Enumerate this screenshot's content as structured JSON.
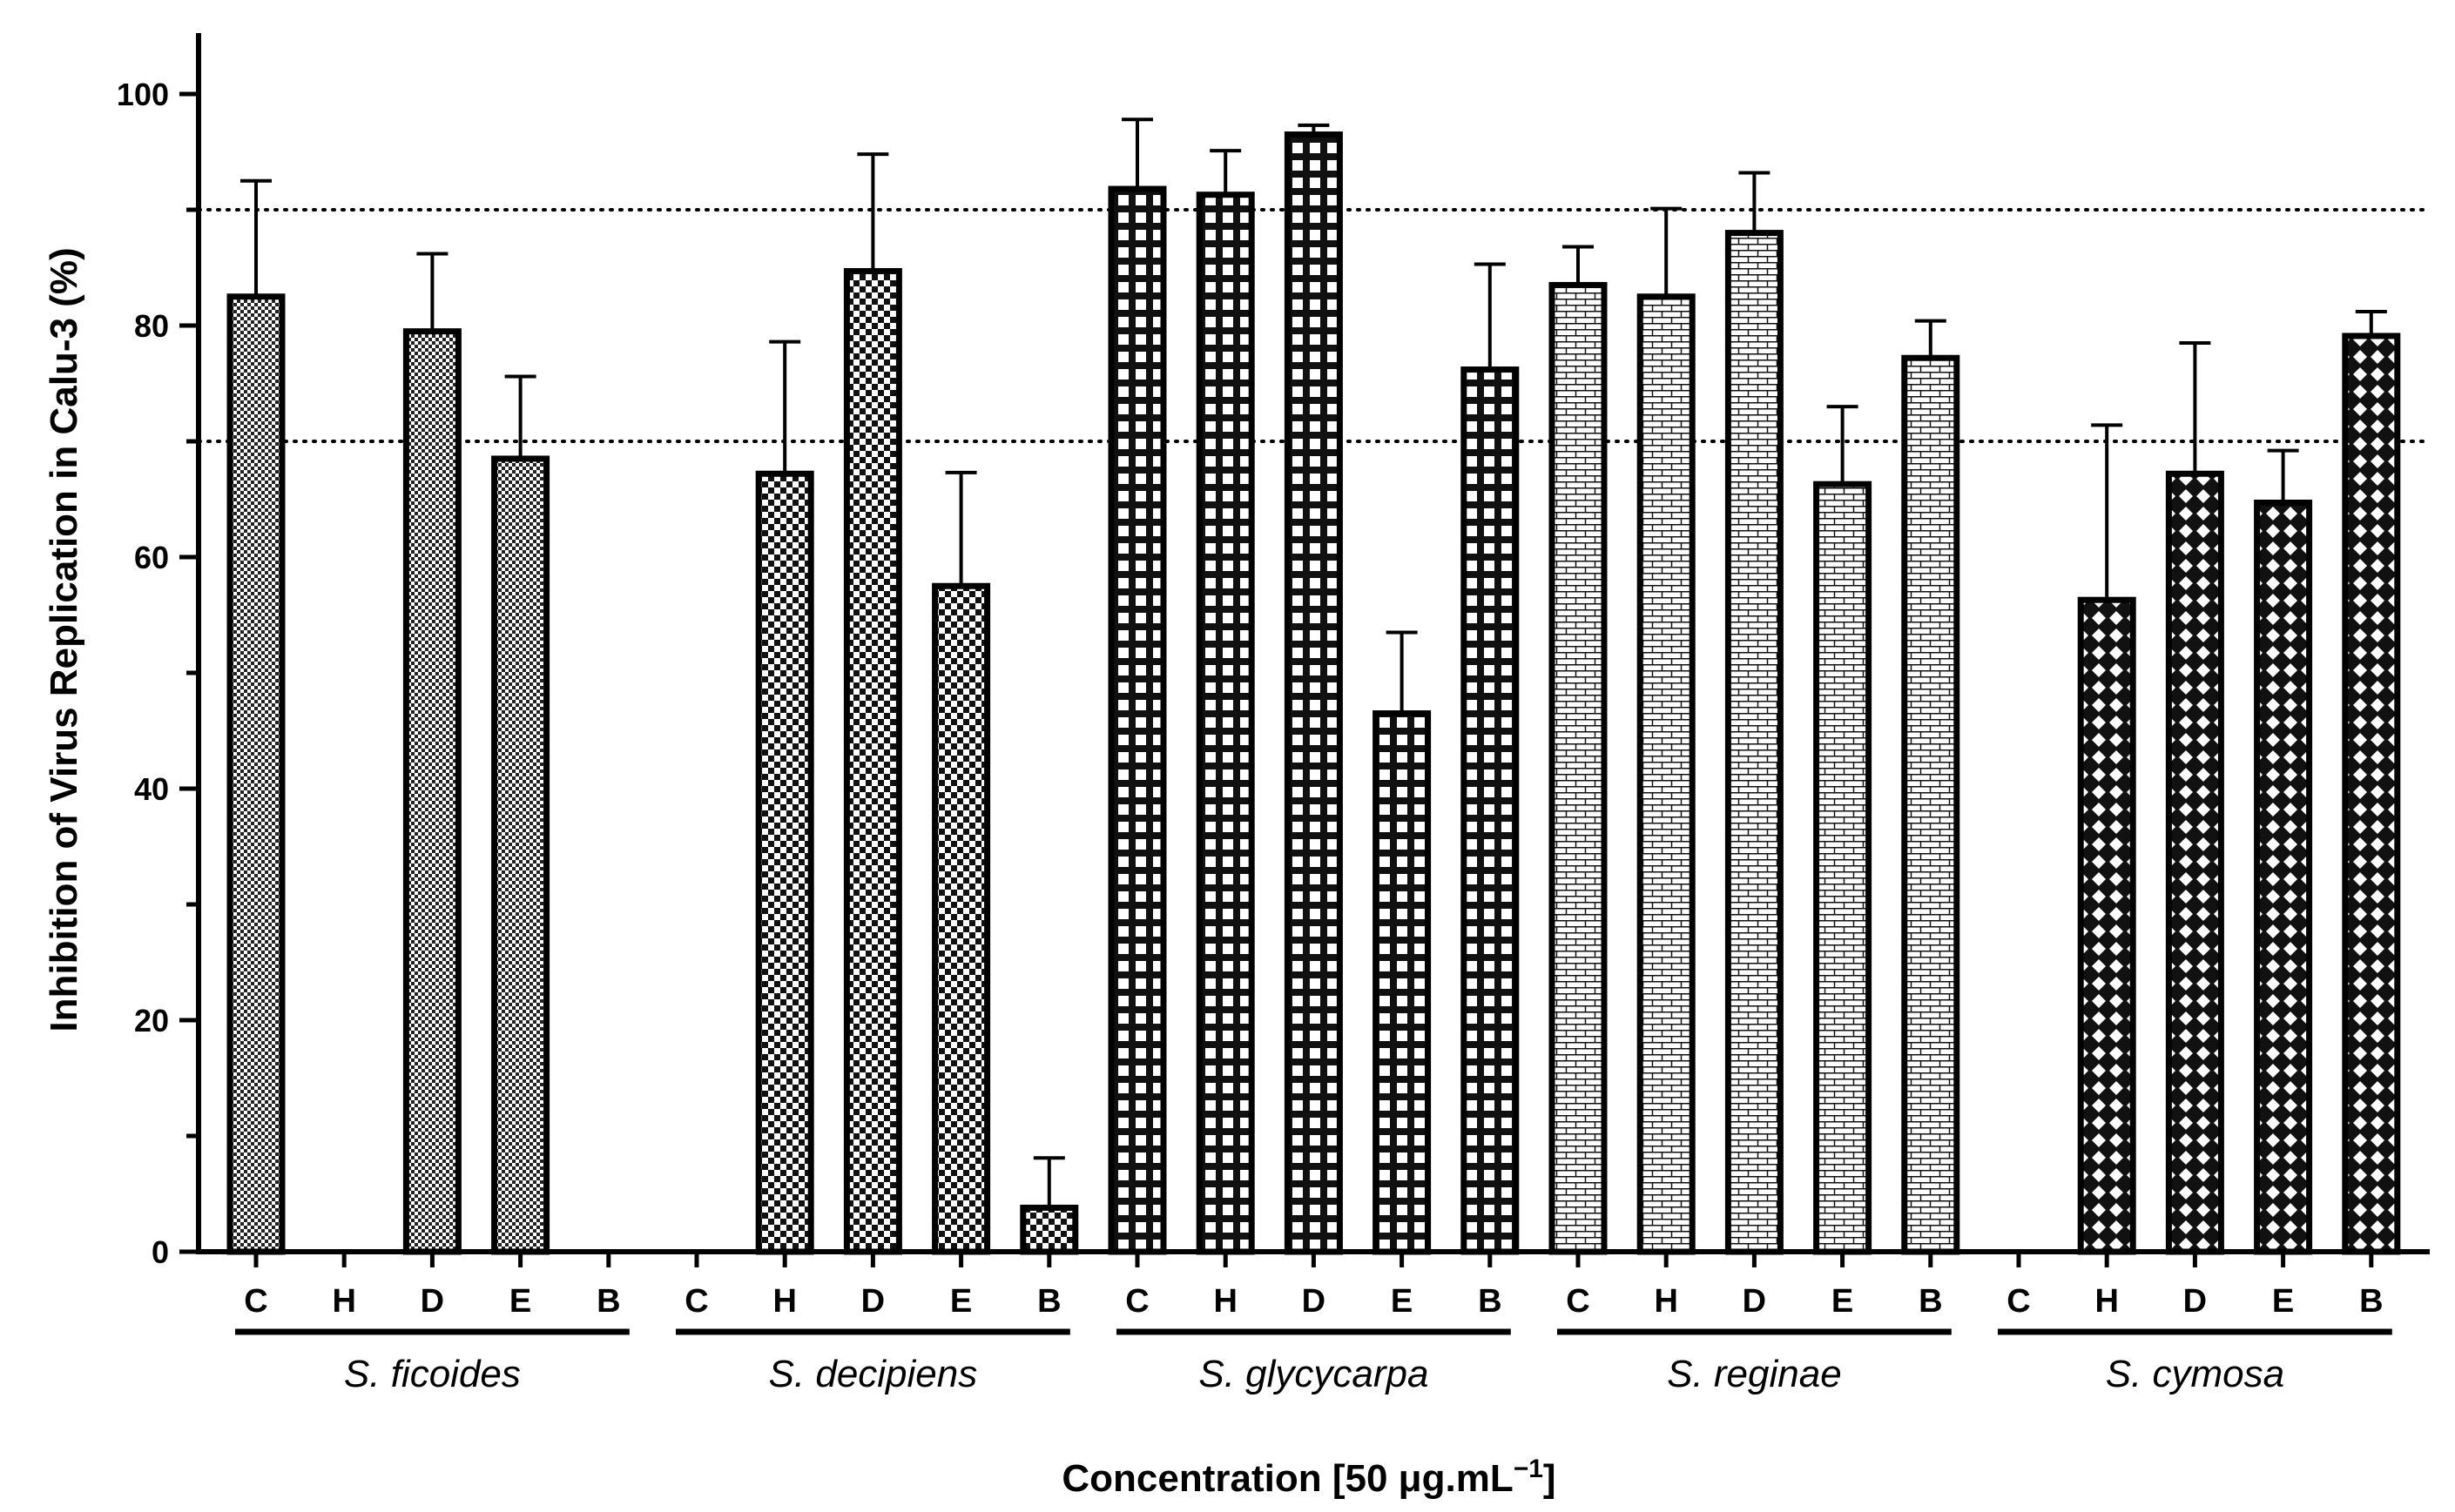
{
  "chart_data": {
    "type": "bar",
    "title": "",
    "ylabel": "Inhibition of Virus Replication in Calu-3 (%)",
    "xlabel": "Concentration [50 μg.mL",
    "xlabel_superscript": "−1",
    "xlabel_suffix": "]",
    "ylim": [
      0,
      105
    ],
    "yticks": [
      "0",
      "20",
      "40",
      "60",
      "80",
      "100"
    ],
    "reference_lines": [
      70,
      90
    ],
    "categories": [
      "C",
      "H",
      "D",
      "E",
      "B"
    ],
    "groups": [
      {
        "name": "S. ficoides",
        "pattern": "fine-check",
        "values": [
          82.5,
          null,
          79.5,
          68.5,
          null
        ],
        "errors": [
          10.0,
          null,
          6.7,
          7.1,
          null
        ]
      },
      {
        "name": "S. decipiens",
        "pattern": "check",
        "values": [
          null,
          67.2,
          84.7,
          57.5,
          3.8
        ],
        "errors": [
          null,
          11.4,
          10.1,
          9.8,
          4.3
        ]
      },
      {
        "name": "S. glycycarpa",
        "pattern": "grid",
        "values": [
          91.8,
          91.3,
          96.5,
          46.5,
          76.2
        ],
        "errors": [
          6.0,
          3.8,
          0.8,
          7.0,
          9.1
        ]
      },
      {
        "name": "S. reginae",
        "pattern": "brick",
        "values": [
          83.5,
          82.5,
          88.0,
          66.3,
          77.2
        ],
        "errors": [
          3.3,
          7.6,
          5.2,
          6.7,
          3.2
        ]
      },
      {
        "name": "S. cymosa",
        "pattern": "diamond",
        "values": [
          null,
          56.3,
          67.2,
          64.7,
          79.1
        ],
        "errors": [
          null,
          15.1,
          11.3,
          4.5,
          2.1
        ]
      }
    ]
  }
}
